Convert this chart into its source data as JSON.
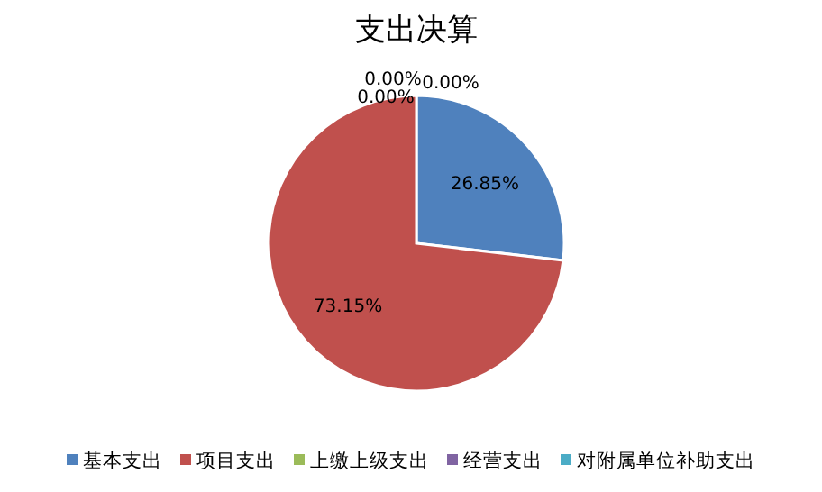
{
  "chart_data": {
    "type": "pie",
    "title": "支出决算",
    "categories": [
      "基本支出",
      "项目支出",
      "上缴上级支出",
      "经营支出",
      "对附属单位补助支出"
    ],
    "values": [
      26.85,
      73.15,
      0,
      0,
      0
    ],
    "colors": [
      "#4f81bd",
      "#c0504d",
      "#9bbb59",
      "#8064a2",
      "#4bacc6"
    ],
    "value_labels": [
      "26.85%",
      "73.15%",
      "0.00%",
      "0.00%",
      "0.00%"
    ],
    "legend": "bottom"
  }
}
